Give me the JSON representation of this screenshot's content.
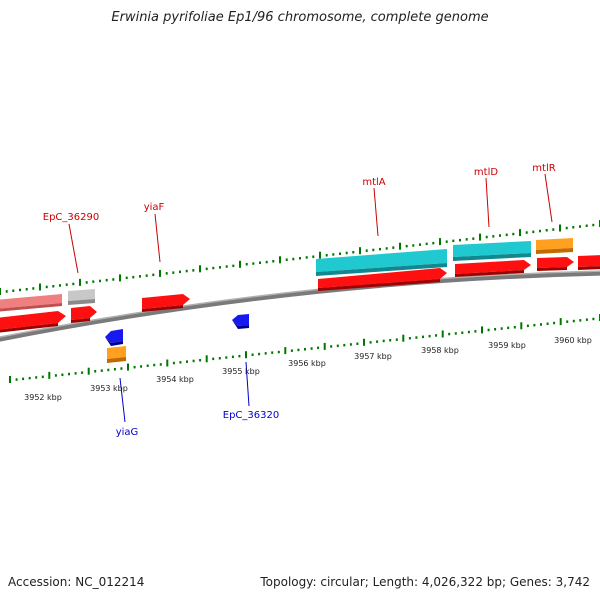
{
  "title": "Erwinia pyrifoliae Ep1/96 chromosome, complete genome",
  "footer": {
    "accession": "Accession: NC_012214",
    "summary": "Topology: circular; Length: 4,026,322 bp; Genes: 3,742"
  },
  "upper_scale_labels": [
    "3956 kbp",
    "3957 kbp",
    "3958 kbp",
    "3959 kbp",
    "3960 kbp"
  ],
  "lower_scale_labels": [
    "3952 kbp",
    "3953 kbp",
    "3954 kbp",
    "3955 kbp"
  ],
  "gene_labels": {
    "epc_36290": "EpC_36290",
    "yiaf": "yiaF",
    "mtla": "mtlA",
    "mtld": "mtlD",
    "mtlr": "mtlR",
    "yiag": "yiaG",
    "epc_36320": "EpC_36320"
  },
  "colors": {
    "backbone": "#8a8a8a",
    "cds_forward": "#ff0000",
    "gene_pink": "#f08080",
    "gene_gray": "#c0c0c0",
    "gene_cyan": "#20c8d0",
    "gene_orange": "#ff9900",
    "gene_blue": "#1010e0",
    "tick_green": "#007700",
    "label_red": "#cc0000",
    "label_blue": "#0000cc"
  }
}
